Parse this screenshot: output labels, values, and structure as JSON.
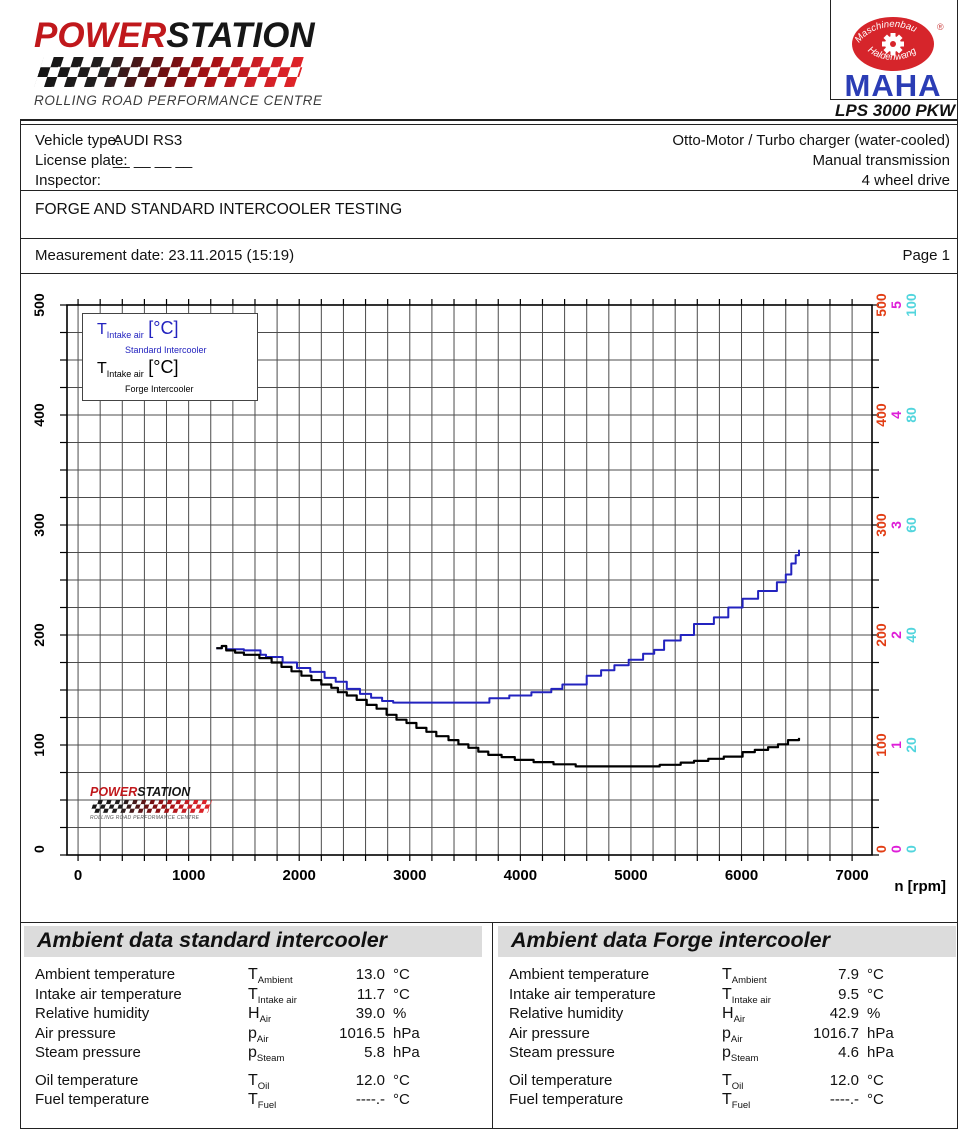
{
  "header": {
    "brand": {
      "power": "POWER",
      "station": "STATION",
      "tagline": "ROLLING ROAD PERFORMANCE CENTRE"
    },
    "maha": {
      "arc_top": "Maschinenbau",
      "arc_bottom": "Haldenwang",
      "name": "MAHA",
      "registered": "®",
      "device": "LPS 3000 PKW"
    }
  },
  "vehicle": {
    "labels": {
      "type": "Vehicle type:",
      "plate": "License plate:",
      "inspector": "Inspector:"
    },
    "values": {
      "type": "AUDI RS3",
      "plate": "__ __ __ __",
      "inspector": ""
    },
    "engine": "Otto-Motor / Turbo charger (water-cooled)",
    "transmission": "Manual transmission",
    "drive": "4 wheel drive",
    "test_title": "FORGE AND STANDARD INTERCOOLER TESTING",
    "measurement_date": "Measurement date: 23.11.2015 (15:19)",
    "page": "Page 1"
  },
  "chart_data": {
    "type": "line",
    "style": "stepped",
    "x_axis": {
      "label": "n [rpm]",
      "min": 0,
      "max": 7200,
      "major_tick": 1000,
      "minor_tick": 200,
      "tick_labels": [
        0,
        1000,
        2000,
        3000,
        4000,
        5000,
        6000,
        7000
      ]
    },
    "y_axis_left": {
      "color": "#000000",
      "min": 0,
      "max": 500,
      "major_tick": 100,
      "minor_tick": 25,
      "tick_labels": [
        0,
        100,
        200,
        300,
        400,
        500
      ]
    },
    "y_axes_right": [
      {
        "color": "#e23d14",
        "min": 0,
        "max": 500,
        "tick_labels": [
          0,
          100,
          200,
          300,
          400,
          500
        ]
      },
      {
        "color": "#de1ed8",
        "min": 0,
        "max": 5,
        "tick_labels": [
          0,
          1,
          2,
          3,
          4,
          5
        ]
      },
      {
        "color": "#52d5dd",
        "min": 0,
        "max": 100,
        "tick_labels": [
          0,
          20,
          40,
          60,
          80,
          100
        ]
      }
    ],
    "grid": true,
    "legend": [
      {
        "symbol": "T",
        "subscript": "Intake air",
        "unit": "[°C]",
        "label": "Standard Intercooler",
        "color": "#2323bf"
      },
      {
        "symbol": "T",
        "subscript": "Intake air",
        "unit": "[°C]",
        "label": "Forge Intercooler",
        "color": "#000000"
      }
    ],
    "series": [
      {
        "name": "Standard Intercooler intake air temperature",
        "color": "#2323bf",
        "unit": "°C",
        "axis": "cyan 0-100 °C",
        "points": [
          [
            1250,
            37.6
          ],
          [
            1300,
            38
          ],
          [
            1340,
            37.4
          ],
          [
            1500,
            37.2
          ],
          [
            1650,
            36.4
          ],
          [
            1700,
            36
          ],
          [
            1850,
            35
          ],
          [
            1980,
            34
          ],
          [
            2100,
            33.3
          ],
          [
            2230,
            32.2
          ],
          [
            2330,
            31.5
          ],
          [
            2430,
            30.2
          ],
          [
            2550,
            29.3
          ],
          [
            2650,
            28.6
          ],
          [
            2750,
            28
          ],
          [
            2850,
            27.7
          ],
          [
            3650,
            27.7
          ],
          [
            3720,
            28.5
          ],
          [
            3900,
            29
          ],
          [
            4100,
            29.6
          ],
          [
            4280,
            30.2
          ],
          [
            4380,
            31
          ],
          [
            4600,
            32.6
          ],
          [
            4730,
            33.6
          ],
          [
            4850,
            34.5
          ],
          [
            4980,
            35.5
          ],
          [
            5110,
            36.6
          ],
          [
            5210,
            37.3
          ],
          [
            5300,
            39
          ],
          [
            5450,
            40
          ],
          [
            5570,
            42
          ],
          [
            5750,
            43.2
          ],
          [
            5880,
            45
          ],
          [
            6010,
            46.6
          ],
          [
            6150,
            48
          ],
          [
            6320,
            49.6
          ],
          [
            6400,
            51
          ],
          [
            6450,
            53
          ],
          [
            6490,
            54.5
          ],
          [
            6520,
            55.5
          ]
        ]
      },
      {
        "name": "Forge Intercooler intake air temperature",
        "color": "#000000",
        "unit": "°C",
        "axis": "cyan 0-100 °C",
        "points": [
          [
            1250,
            37.6
          ],
          [
            1300,
            38
          ],
          [
            1340,
            37.2
          ],
          [
            1420,
            36.8
          ],
          [
            1500,
            36.4
          ],
          [
            1640,
            35.8
          ],
          [
            1750,
            35
          ],
          [
            1840,
            34.2
          ],
          [
            1930,
            33.4
          ],
          [
            2020,
            32.6
          ],
          [
            2110,
            31.8
          ],
          [
            2200,
            31
          ],
          [
            2290,
            30.4
          ],
          [
            2350,
            29.6
          ],
          [
            2430,
            29
          ],
          [
            2520,
            28.2
          ],
          [
            2610,
            27.3
          ],
          [
            2700,
            26.6
          ],
          [
            2790,
            25.5
          ],
          [
            2880,
            24.6
          ],
          [
            2970,
            24
          ],
          [
            3060,
            23.1
          ],
          [
            3150,
            22.4
          ],
          [
            3240,
            21.6
          ],
          [
            3350,
            20.9
          ],
          [
            3440,
            20.1
          ],
          [
            3530,
            19.5
          ],
          [
            3620,
            18.8
          ],
          [
            3710,
            18.2
          ],
          [
            3830,
            17.8
          ],
          [
            3950,
            17.3
          ],
          [
            4120,
            16.9
          ],
          [
            4300,
            16.5
          ],
          [
            4500,
            16.1
          ],
          [
            5150,
            16.1
          ],
          [
            5260,
            16.4
          ],
          [
            5450,
            16.8
          ],
          [
            5570,
            17.1
          ],
          [
            5700,
            17.5
          ],
          [
            5840,
            17.9
          ],
          [
            6010,
            18.7
          ],
          [
            6120,
            19.1
          ],
          [
            6240,
            19.6
          ],
          [
            6330,
            20.1
          ],
          [
            6420,
            20.9
          ],
          [
            6520,
            21.3
          ]
        ]
      }
    ]
  },
  "ambient_tables": [
    {
      "title": "Ambient data standard intercooler",
      "rows": [
        {
          "label": "Ambient temperature",
          "sym": "T",
          "sub": "Ambient",
          "value": "13.0",
          "unit": "°C"
        },
        {
          "label": "Intake air temperature",
          "sym": "T",
          "sub": "Intake air",
          "value": "11.7",
          "unit": "°C"
        },
        {
          "label": "Relative humidity",
          "sym": "H",
          "sub": "Air",
          "value": "39.0",
          "unit": "%"
        },
        {
          "label": "Air pressure",
          "sym": "p",
          "sub": "Air",
          "value": "1016.5",
          "unit": "hPa"
        },
        {
          "label": "Steam pressure",
          "sym": "p",
          "sub": "Steam",
          "value": "5.8",
          "unit": "hPa"
        },
        {
          "label": "Oil temperature",
          "sym": "T",
          "sub": "Oil",
          "value": "12.0",
          "unit": "°C",
          "gap": true
        },
        {
          "label": "Fuel temperature",
          "sym": "T",
          "sub": "Fuel",
          "value": "----.-",
          "unit": "°C"
        }
      ]
    },
    {
      "title": "Ambient data Forge intercooler",
      "rows": [
        {
          "label": "Ambient temperature",
          "sym": "T",
          "sub": "Ambient",
          "value": "7.9",
          "unit": "°C"
        },
        {
          "label": "Intake air temperature",
          "sym": "T",
          "sub": "Intake air",
          "value": "9.5",
          "unit": "°C"
        },
        {
          "label": "Relative humidity",
          "sym": "H",
          "sub": "Air",
          "value": "42.9",
          "unit": "%"
        },
        {
          "label": "Air pressure",
          "sym": "p",
          "sub": "Air",
          "value": "1016.7",
          "unit": "hPa"
        },
        {
          "label": "Steam pressure",
          "sym": "p",
          "sub": "Steam",
          "value": "4.6",
          "unit": "hPa"
        },
        {
          "label": "Oil temperature",
          "sym": "T",
          "sub": "Oil",
          "value": "12.0",
          "unit": "°C",
          "gap": true
        },
        {
          "label": "Fuel temperature",
          "sym": "T",
          "sub": "Fuel",
          "value": "----.-",
          "unit": "°C"
        }
      ]
    }
  ]
}
